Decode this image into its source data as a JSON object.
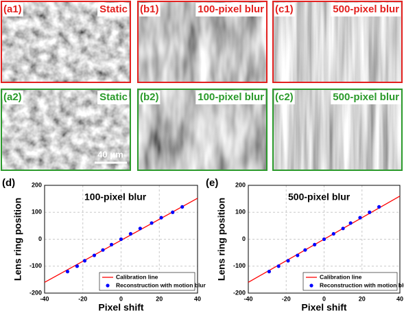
{
  "images": [
    {
      "label": "(a1)",
      "caption": "Static",
      "color": "#e3201e"
    },
    {
      "label": "(b1)",
      "caption": "100-pixel blur",
      "color": "#e3201e"
    },
    {
      "label": "(c1)",
      "caption": "500-pixel blur",
      "color": "#e3201e"
    },
    {
      "label": "(a2)",
      "caption": "Static",
      "color": "#2b9a2b"
    },
    {
      "label": "(b2)",
      "caption": "100-pixel blur",
      "color": "#2b9a2b"
    },
    {
      "label": "(c2)",
      "caption": "500-pixel blur",
      "color": "#2b9a2b"
    }
  ],
  "scale_bar": "40 μm",
  "chart_data": [
    {
      "type": "scatter",
      "panel_label": "(d)",
      "title": "100-pixel blur",
      "xlabel": "Pixel shift",
      "ylabel": "Lens ring position",
      "xlim": [
        -40,
        40
      ],
      "ylim": [
        -200,
        200
      ],
      "xticks": [
        -40,
        -20,
        0,
        20,
        40
      ],
      "yticks": [
        -200,
        -100,
        0,
        100,
        200
      ],
      "grid": true,
      "legend": "lower right",
      "series": [
        {
          "name": "Calibration line",
          "color": "#ff0000",
          "style": "line",
          "x": [
            -40,
            40
          ],
          "values": [
            -160,
            152
          ]
        },
        {
          "name": "Reconstruction with motion blur",
          "color": "#0000ff",
          "style": "marker",
          "x": [
            -28,
            -23,
            -19,
            -14,
            -9.5,
            -5,
            0,
            5,
            10,
            16,
            21,
            27,
            32
          ],
          "values": [
            -120,
            -100,
            -80,
            -60,
            -40,
            -20,
            0,
            20,
            40,
            60,
            80,
            100,
            120
          ]
        }
      ]
    },
    {
      "type": "scatter",
      "panel_label": "(e)",
      "title": "500-pixel blur",
      "xlabel": "Pixel shift",
      "ylabel": "Lens ring position",
      "xlim": [
        -40,
        40
      ],
      "ylim": [
        -200,
        200
      ],
      "xticks": [
        -40,
        -20,
        0,
        20,
        40
      ],
      "yticks": [
        -200,
        -100,
        0,
        100,
        200
      ],
      "grid": true,
      "legend": "lower right",
      "series": [
        {
          "name": "Calibration line",
          "color": "#ff0000",
          "style": "line",
          "x": [
            -40,
            40
          ],
          "values": [
            -160,
            160
          ]
        },
        {
          "name": "Reconstruction with motion blur",
          "color": "#0000ff",
          "style": "marker",
          "x": [
            -29,
            -24,
            -19,
            -14,
            -10,
            -5,
            0,
            5,
            10,
            14,
            19,
            24,
            29
          ],
          "values": [
            -120,
            -100,
            -80,
            -60,
            -40,
            -20,
            0,
            20,
            40,
            60,
            80,
            100,
            120
          ]
        }
      ]
    }
  ]
}
